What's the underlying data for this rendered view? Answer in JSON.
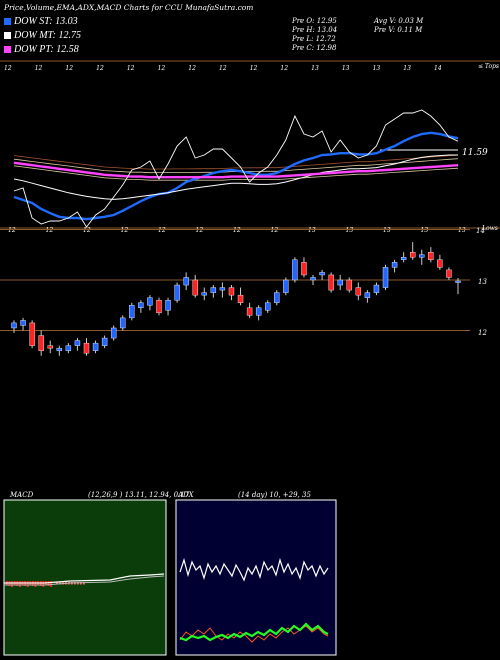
{
  "header": {
    "title": "Price,Volume,EMA,ADX,MACD Charts for CCU MunafaSutra.com",
    "legend": [
      {
        "label": "DOW ST: 13.03",
        "color": "#1f6bff"
      },
      {
        "label": "DOW MT: 12.75",
        "color": "#ffffff"
      },
      {
        "label": "DOW PT: 12.58",
        "color": "#ff44ff"
      }
    ],
    "ohlc": {
      "open": "Pre   O: 12.95",
      "high": "Pre   H: 13.04",
      "low": "Pre   L: 12.72",
      "close": "Pre   C: 12.98"
    },
    "volume": {
      "avg": "Avg V: 0.03 M",
      "prev": "Pre   V: 0.11 M"
    }
  },
  "ema_panel": {
    "top_labels": [
      "12",
      "12",
      "12",
      "12",
      "12",
      "12",
      "12",
      "12",
      "12",
      "12",
      "13",
      "13",
      "13",
      "13",
      "14"
    ],
    "bottom_labels": [
      "12",
      "12",
      "12",
      "12",
      "12",
      "12",
      "12",
      "12",
      "13",
      "13",
      "13",
      "13",
      "13"
    ],
    "right_label": "11.59",
    "corner_label": "≤ Tops"
  },
  "candle_panel": {
    "levels": [
      "14",
      "13",
      "12"
    ],
    "corner_label": "Lows"
  },
  "macd": {
    "label": "MACD",
    "values": "(12,26,9 ) 13.11, 12.94, 0.17"
  },
  "adx": {
    "label": "ADX",
    "values": "(14 day) 10, +29, 35"
  },
  "chart_data": {
    "type": "candlestick",
    "price_levels": [
      12,
      13,
      14
    ],
    "candles": [
      {
        "o": 12.05,
        "h": 12.2,
        "l": 11.95,
        "c": 12.15
      },
      {
        "o": 12.1,
        "h": 12.25,
        "l": 12.0,
        "c": 12.2
      },
      {
        "o": 12.15,
        "h": 12.2,
        "l": 11.65,
        "c": 11.7
      },
      {
        "o": 11.9,
        "h": 12.0,
        "l": 11.5,
        "c": 11.6
      },
      {
        "o": 11.7,
        "h": 11.8,
        "l": 11.55,
        "c": 11.65
      },
      {
        "o": 11.6,
        "h": 11.7,
        "l": 11.5,
        "c": 11.65
      },
      {
        "o": 11.6,
        "h": 11.75,
        "l": 11.55,
        "c": 11.7
      },
      {
        "o": 11.7,
        "h": 11.85,
        "l": 11.6,
        "c": 11.8
      },
      {
        "o": 11.75,
        "h": 11.85,
        "l": 11.5,
        "c": 11.55
      },
      {
        "o": 11.6,
        "h": 11.8,
        "l": 11.55,
        "c": 11.75
      },
      {
        "o": 11.7,
        "h": 11.9,
        "l": 11.65,
        "c": 11.85
      },
      {
        "o": 11.85,
        "h": 12.1,
        "l": 11.8,
        "c": 12.05
      },
      {
        "o": 12.05,
        "h": 12.3,
        "l": 12.0,
        "c": 12.25
      },
      {
        "o": 12.25,
        "h": 12.55,
        "l": 12.2,
        "c": 12.5
      },
      {
        "o": 12.45,
        "h": 12.6,
        "l": 12.35,
        "c": 12.55
      },
      {
        "o": 12.5,
        "h": 12.7,
        "l": 12.4,
        "c": 12.65
      },
      {
        "o": 12.6,
        "h": 12.65,
        "l": 12.3,
        "c": 12.35
      },
      {
        "o": 12.4,
        "h": 12.65,
        "l": 12.3,
        "c": 12.6
      },
      {
        "o": 12.6,
        "h": 12.95,
        "l": 12.55,
        "c": 12.9
      },
      {
        "o": 12.9,
        "h": 13.15,
        "l": 12.8,
        "c": 13.05
      },
      {
        "o": 13.0,
        "h": 13.1,
        "l": 12.65,
        "c": 12.7
      },
      {
        "o": 12.7,
        "h": 12.85,
        "l": 12.6,
        "c": 12.75
      },
      {
        "o": 12.75,
        "h": 12.9,
        "l": 12.65,
        "c": 12.85
      },
      {
        "o": 12.8,
        "h": 12.95,
        "l": 12.65,
        "c": 12.85
      },
      {
        "o": 12.85,
        "h": 12.9,
        "l": 12.6,
        "c": 12.7
      },
      {
        "o": 12.7,
        "h": 12.85,
        "l": 12.5,
        "c": 12.55
      },
      {
        "o": 12.45,
        "h": 12.55,
        "l": 12.25,
        "c": 12.3
      },
      {
        "o": 12.3,
        "h": 12.5,
        "l": 12.2,
        "c": 12.45
      },
      {
        "o": 12.4,
        "h": 12.6,
        "l": 12.35,
        "c": 12.55
      },
      {
        "o": 12.55,
        "h": 12.8,
        "l": 12.5,
        "c": 12.75
      },
      {
        "o": 12.75,
        "h": 13.05,
        "l": 12.7,
        "c": 13.0
      },
      {
        "o": 13.0,
        "h": 13.45,
        "l": 12.95,
        "c": 13.4
      },
      {
        "o": 13.35,
        "h": 13.45,
        "l": 13.05,
        "c": 13.1
      },
      {
        "o": 13.0,
        "h": 13.1,
        "l": 12.9,
        "c": 13.05
      },
      {
        "o": 13.1,
        "h": 13.2,
        "l": 13.0,
        "c": 13.15
      },
      {
        "o": 13.1,
        "h": 13.15,
        "l": 12.75,
        "c": 12.8
      },
      {
        "o": 12.9,
        "h": 13.1,
        "l": 12.8,
        "c": 13.0
      },
      {
        "o": 13.0,
        "h": 13.05,
        "l": 12.75,
        "c": 12.8
      },
      {
        "o": 12.85,
        "h": 12.95,
        "l": 12.6,
        "c": 12.7
      },
      {
        "o": 12.65,
        "h": 12.8,
        "l": 12.55,
        "c": 12.75
      },
      {
        "o": 12.75,
        "h": 12.95,
        "l": 12.7,
        "c": 12.9
      },
      {
        "o": 12.85,
        "h": 13.3,
        "l": 12.8,
        "c": 13.25
      },
      {
        "o": 13.25,
        "h": 13.4,
        "l": 13.15,
        "c": 13.35
      },
      {
        "o": 13.4,
        "h": 13.55,
        "l": 13.35,
        "c": 13.45
      },
      {
        "o": 13.55,
        "h": 13.75,
        "l": 13.4,
        "c": 13.45
      },
      {
        "o": 13.45,
        "h": 13.6,
        "l": 13.3,
        "c": 13.5
      },
      {
        "o": 13.55,
        "h": 13.65,
        "l": 13.35,
        "c": 13.4
      },
      {
        "o": 13.4,
        "h": 13.5,
        "l": 13.2,
        "c": 13.25
      },
      {
        "o": 13.2,
        "h": 13.25,
        "l": 13.0,
        "c": 13.05
      },
      {
        "o": 12.95,
        "h": 13.04,
        "l": 12.72,
        "c": 12.98
      }
    ],
    "ema_lines": [
      {
        "name": "DOW ST",
        "color": "#1f6bff",
        "values": [
          12.05,
          12.0,
          11.95,
          11.85,
          11.78,
          11.72,
          11.7,
          11.7,
          11.68,
          11.7,
          11.72,
          11.75,
          11.82,
          11.9,
          11.98,
          12.05,
          12.1,
          12.12,
          12.2,
          12.3,
          12.35,
          12.4,
          12.45,
          12.48,
          12.5,
          12.48,
          12.45,
          12.42,
          12.42,
          12.45,
          12.52,
          12.6,
          12.66,
          12.7,
          12.75,
          12.76,
          12.78,
          12.78,
          12.76,
          12.76,
          12.78,
          12.84,
          12.9,
          12.98,
          13.05,
          13.1,
          13.12,
          13.1,
          13.06,
          13.03
        ]
      },
      {
        "name": "DOW MT",
        "color": "#ffffff",
        "values": [
          12.35,
          12.32,
          12.28,
          12.24,
          12.2,
          12.16,
          12.12,
          12.09,
          12.06,
          12.04,
          12.02,
          12.01,
          12.02,
          12.04,
          12.06,
          12.08,
          12.1,
          12.12,
          12.15,
          12.18,
          12.2,
          12.22,
          12.24,
          12.26,
          12.28,
          12.28,
          12.27,
          12.26,
          12.26,
          12.27,
          12.3,
          12.34,
          12.38,
          12.42,
          12.46,
          12.48,
          12.5,
          12.52,
          12.52,
          12.53,
          12.54,
          12.57,
          12.6,
          12.64,
          12.68,
          12.71,
          12.73,
          12.74,
          12.75,
          12.75
        ]
      },
      {
        "name": "DOW PT",
        "color": "#ff44ff",
        "values": [
          12.62,
          12.6,
          12.58,
          12.56,
          12.54,
          12.52,
          12.5,
          12.48,
          12.46,
          12.44,
          12.42,
          12.41,
          12.4,
          12.39,
          12.39,
          12.38,
          12.38,
          12.38,
          12.38,
          12.38,
          12.38,
          12.38,
          12.38,
          12.38,
          12.39,
          12.39,
          12.39,
          12.39,
          12.39,
          12.39,
          12.4,
          12.41,
          12.42,
          12.43,
          12.44,
          12.45,
          12.46,
          12.47,
          12.48,
          12.48,
          12.49,
          12.5,
          12.51,
          12.52,
          12.53,
          12.54,
          12.55,
          12.56,
          12.57,
          12.58
        ]
      }
    ]
  }
}
